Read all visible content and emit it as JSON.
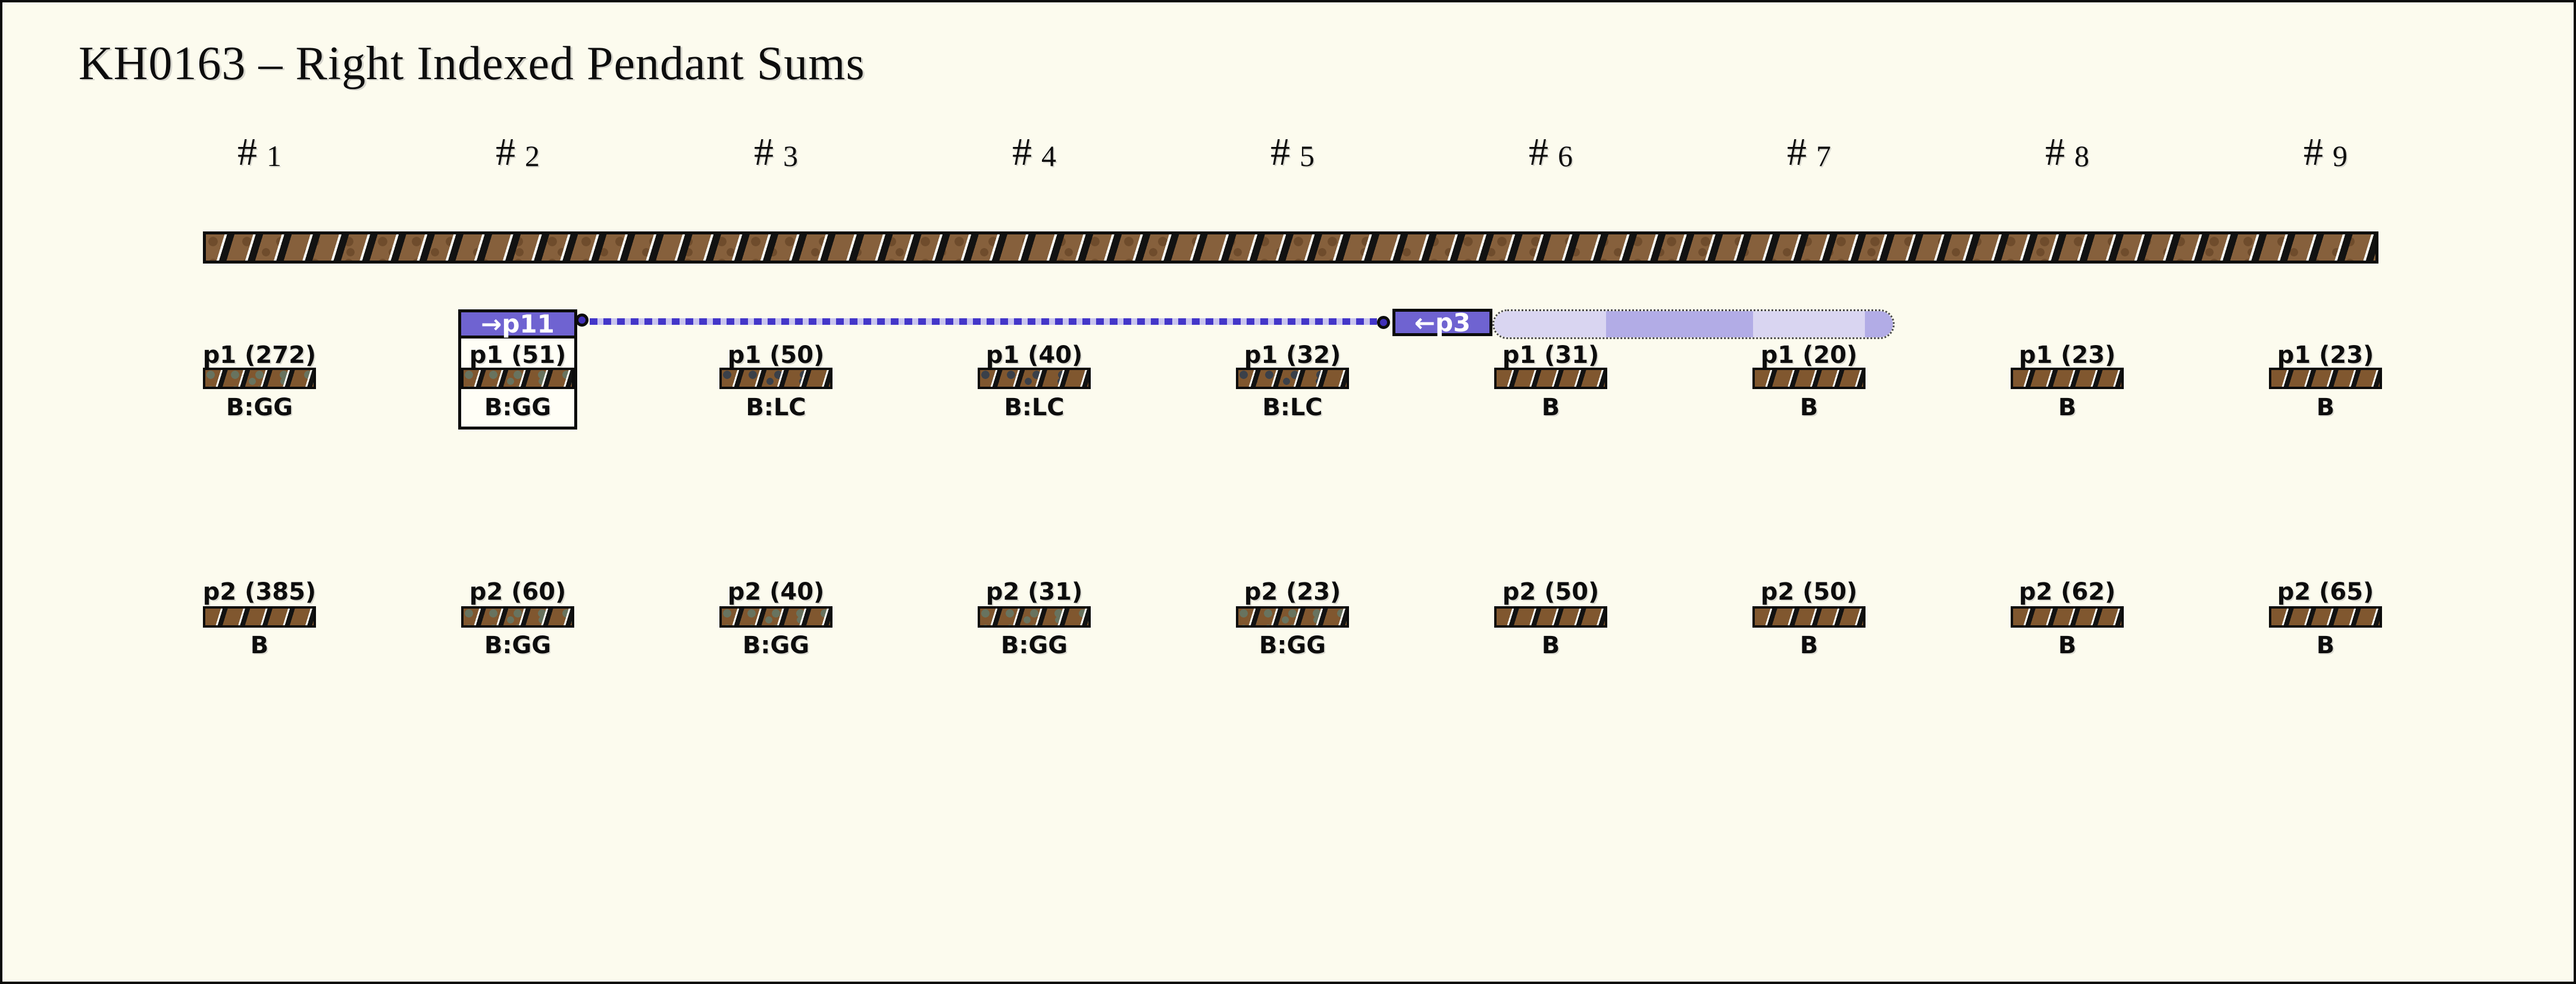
{
  "title": "KH0163 – Right Indexed Pendant Sums",
  "columns": [
    {
      "header": "# 1",
      "p1": {
        "label": "p1 (272)",
        "code": "B:GG"
      },
      "p2": {
        "label": "p2 (385)",
        "code": "B"
      }
    },
    {
      "header": "# 2",
      "p1": {
        "label": "p1 (51)",
        "code": "B:GG",
        "highlighted": true
      },
      "p2": {
        "label": "p2 (60)",
        "code": "B:GG"
      }
    },
    {
      "header": "# 3",
      "p1": {
        "label": "p1 (50)",
        "code": "B:LC"
      },
      "p2": {
        "label": "p2 (40)",
        "code": "B:GG"
      }
    },
    {
      "header": "# 4",
      "p1": {
        "label": "p1 (40)",
        "code": "B:LC"
      },
      "p2": {
        "label": "p2 (31)",
        "code": "B:GG"
      }
    },
    {
      "header": "# 5",
      "p1": {
        "label": "p1 (32)",
        "code": "B:LC"
      },
      "p2": {
        "label": "p2 (23)",
        "code": "B:GG"
      }
    },
    {
      "header": "# 6",
      "p1": {
        "label": "p1 (31)",
        "code": "B"
      },
      "p2": {
        "label": "p2 (50)",
        "code": "B"
      }
    },
    {
      "header": "# 7",
      "p1": {
        "label": "p1 (20)",
        "code": "B"
      },
      "p2": {
        "label": "p2 (50)",
        "code": "B"
      }
    },
    {
      "header": "# 8",
      "p1": {
        "label": "p1 (23)",
        "code": "B"
      },
      "p2": {
        "label": "p2 (62)",
        "code": "B"
      }
    },
    {
      "header": "# 9",
      "p1": {
        "label": "p1 (23)",
        "code": "B"
      },
      "p2": {
        "label": "p2 (65)",
        "code": "B"
      }
    }
  ],
  "annotation": {
    "source_label": "→p11",
    "target_label": "←p3"
  },
  "sum_bar": {
    "segments": [
      {
        "tone": "light",
        "width_pct": 28
      },
      {
        "tone": "medium",
        "width_pct": 37
      },
      {
        "tone": "light",
        "width_pct": 28
      },
      {
        "tone": "medium",
        "width_pct": 7
      }
    ]
  },
  "colors": {
    "background": "#fcfbee",
    "accent_purple": "#6f63d1",
    "link_blue": "#4336c9",
    "dot_fill": "#4130b8",
    "dot_gap": "#c9c4ee",
    "bar_light": "#d9d5f1",
    "bar_medium": "#b2ace6",
    "main_cord_brown": "#86603c",
    "pendant_brown": "#80572f",
    "main_cord_speckle": "#6f4c2c",
    "gg_speckle": "#68735f",
    "lc_speckle": "#3a4049"
  }
}
